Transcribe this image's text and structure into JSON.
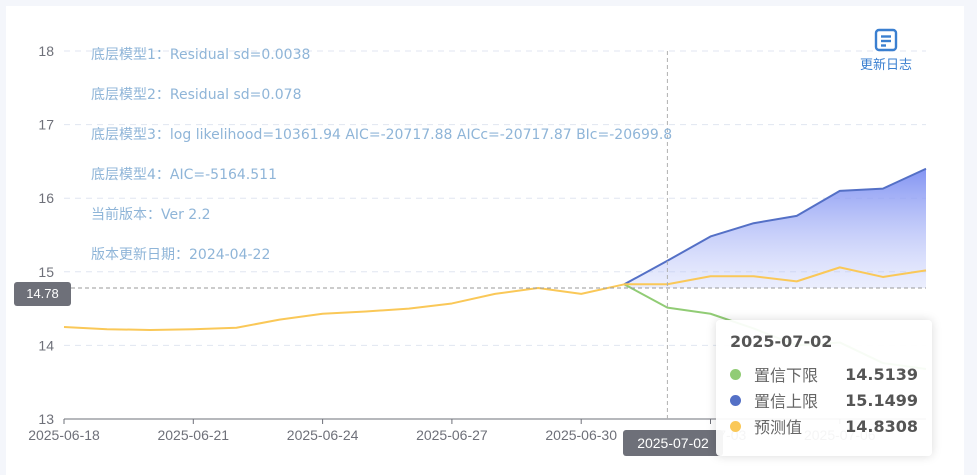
{
  "info_lines": [
    "底层模型1：Residual sd=0.0038",
    "底层模型2：Residual sd=0.078",
    "底层模型3：log likelihood=10361.94 AIC=-20717.88 AICc=-20717.87 BIc=-20699.8",
    "底层模型4：AIC=-5164.511",
    "当前版本：Ver 2.2",
    "版本更新日期：2024-04-22"
  ],
  "update_log": {
    "label": "更新日志",
    "icon": "document-icon"
  },
  "pointer": {
    "y_label": "14.78",
    "y_value": 14.78,
    "x_label": "2025-07-02",
    "x_value": "2025-07-02"
  },
  "tooltip": {
    "title": "2025-07-02",
    "rows": [
      {
        "name": "置信下限",
        "value": "14.5139",
        "color": "#91cc75"
      },
      {
        "name": "置信上限",
        "value": "15.1499",
        "color": "#5470c6"
      },
      {
        "name": "预测值",
        "value": "14.8308",
        "color": "#fac858"
      }
    ]
  },
  "chart_data": {
    "type": "line",
    "x_tick_labels": [
      "2025-06-18",
      "2025-06-21",
      "2025-06-24",
      "2025-06-27",
      "2025-06-30",
      "2025-07-03",
      "2025-07-06"
    ],
    "ylim": [
      13,
      18
    ],
    "y_ticks": [
      13,
      14,
      15,
      16,
      17,
      18
    ],
    "grid": true,
    "forecast_start": "2025-07-01",
    "series": [
      {
        "name": "预测值",
        "color": "#fac858",
        "points": [
          [
            "2025-06-18",
            14.25
          ],
          [
            "2025-06-19",
            14.22
          ],
          [
            "2025-06-20",
            14.21
          ],
          [
            "2025-06-21",
            14.22
          ],
          [
            "2025-06-22",
            14.24
          ],
          [
            "2025-06-23",
            14.35
          ],
          [
            "2025-06-24",
            14.43
          ],
          [
            "2025-06-25",
            14.46
          ],
          [
            "2025-06-26",
            14.5
          ],
          [
            "2025-06-27",
            14.57
          ],
          [
            "2025-06-28",
            14.7
          ],
          [
            "2025-06-29",
            14.78
          ],
          [
            "2025-06-30",
            14.7
          ],
          [
            "2025-07-01",
            14.83
          ],
          [
            "2025-07-02",
            14.8308
          ],
          [
            "2025-07-03",
            14.94
          ],
          [
            "2025-07-04",
            14.94
          ],
          [
            "2025-07-05",
            14.87
          ],
          [
            "2025-07-06",
            15.06
          ],
          [
            "2025-07-07",
            14.93
          ],
          [
            "2025-07-08",
            15.02
          ]
        ]
      },
      {
        "name": "置信上限",
        "color": "#5470c6",
        "points": [
          [
            "2025-07-01",
            14.83
          ],
          [
            "2025-07-02",
            15.1499
          ],
          [
            "2025-07-03",
            15.48
          ],
          [
            "2025-07-04",
            15.66
          ],
          [
            "2025-07-05",
            15.76
          ],
          [
            "2025-07-06",
            16.1
          ],
          [
            "2025-07-07",
            16.13
          ],
          [
            "2025-07-08",
            16.4
          ]
        ]
      },
      {
        "name": "置信下限",
        "color": "#91cc75",
        "points": [
          [
            "2025-07-01",
            14.83
          ],
          [
            "2025-07-02",
            14.5139
          ],
          [
            "2025-07-03",
            14.43
          ],
          [
            "2025-07-04",
            14.23
          ],
          [
            "2025-07-05",
            14.0
          ],
          [
            "2025-07-06",
            14.04
          ],
          [
            "2025-07-07",
            13.76
          ],
          [
            "2025-07-08",
            13.68
          ]
        ]
      }
    ]
  }
}
